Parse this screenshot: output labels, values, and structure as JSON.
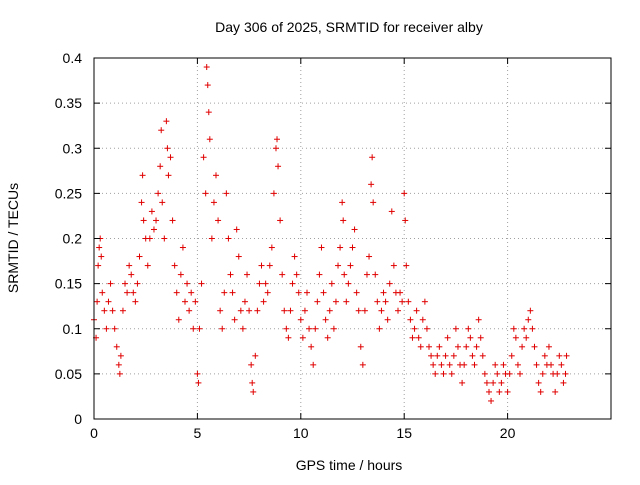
{
  "chart_data": {
    "type": "scatter",
    "title": "Day 306 of 2025, SRMTID for receiver alby",
    "xlabel": "GPS time / hours",
    "ylabel": "SRMTID / TECUs",
    "xlim": [
      0,
      25
    ],
    "ylim": [
      0,
      0.4
    ],
    "xticks": [
      0,
      5,
      10,
      15,
      20
    ],
    "xtick_labels": [
      "0",
      "5",
      "10",
      "15",
      "20"
    ],
    "yticks": [
      0,
      0.05,
      0.1,
      0.15,
      0.2,
      0.25,
      0.3,
      0.35,
      0.4
    ],
    "ytick_labels": [
      "0",
      "0.05",
      "0.1",
      "0.15",
      "0.2",
      "0.25",
      "0.3",
      "0.35",
      "0.4"
    ],
    "grid": true,
    "marker": "+",
    "color": "#e00000",
    "series": [
      {
        "name": "SRMTID",
        "points": [
          [
            0.0,
            0.11
          ],
          [
            0.1,
            0.09
          ],
          [
            0.15,
            0.13
          ],
          [
            0.2,
            0.17
          ],
          [
            0.25,
            0.19
          ],
          [
            0.3,
            0.2
          ],
          [
            0.35,
            0.18
          ],
          [
            0.4,
            0.14
          ],
          [
            0.5,
            0.12
          ],
          [
            0.6,
            0.1
          ],
          [
            0.7,
            0.13
          ],
          [
            0.8,
            0.15
          ],
          [
            0.9,
            0.12
          ],
          [
            1.0,
            0.1
          ],
          [
            1.1,
            0.08
          ],
          [
            1.2,
            0.06
          ],
          [
            1.25,
            0.05
          ],
          [
            1.3,
            0.07
          ],
          [
            1.4,
            0.12
          ],
          [
            1.5,
            0.15
          ],
          [
            1.6,
            0.14
          ],
          [
            1.7,
            0.17
          ],
          [
            1.8,
            0.16
          ],
          [
            1.9,
            0.14
          ],
          [
            2.0,
            0.13
          ],
          [
            2.1,
            0.15
          ],
          [
            2.2,
            0.18
          ],
          [
            2.3,
            0.24
          ],
          [
            2.35,
            0.27
          ],
          [
            2.4,
            0.22
          ],
          [
            2.5,
            0.2
          ],
          [
            2.6,
            0.17
          ],
          [
            2.7,
            0.2
          ],
          [
            2.8,
            0.23
          ],
          [
            2.9,
            0.21
          ],
          [
            3.0,
            0.22
          ],
          [
            3.1,
            0.25
          ],
          [
            3.2,
            0.28
          ],
          [
            3.25,
            0.32
          ],
          [
            3.3,
            0.24
          ],
          [
            3.4,
            0.2
          ],
          [
            3.5,
            0.33
          ],
          [
            3.55,
            0.3
          ],
          [
            3.6,
            0.27
          ],
          [
            3.7,
            0.29
          ],
          [
            3.8,
            0.22
          ],
          [
            3.9,
            0.17
          ],
          [
            4.0,
            0.14
          ],
          [
            4.1,
            0.11
          ],
          [
            4.2,
            0.16
          ],
          [
            4.3,
            0.19
          ],
          [
            4.4,
            0.13
          ],
          [
            4.5,
            0.15
          ],
          [
            4.6,
            0.12
          ],
          [
            4.7,
            0.14
          ],
          [
            4.8,
            0.1
          ],
          [
            4.9,
            0.13
          ],
          [
            5.0,
            0.05
          ],
          [
            5.05,
            0.04
          ],
          [
            5.1,
            0.1
          ],
          [
            5.2,
            0.15
          ],
          [
            5.3,
            0.29
          ],
          [
            5.4,
            0.25
          ],
          [
            5.45,
            0.39
          ],
          [
            5.5,
            0.37
          ],
          [
            5.55,
            0.34
          ],
          [
            5.6,
            0.31
          ],
          [
            5.7,
            0.2
          ],
          [
            5.8,
            0.24
          ],
          [
            5.9,
            0.27
          ],
          [
            6.0,
            0.22
          ],
          [
            6.1,
            0.12
          ],
          [
            6.2,
            0.1
          ],
          [
            6.3,
            0.14
          ],
          [
            6.4,
            0.25
          ],
          [
            6.5,
            0.2
          ],
          [
            6.6,
            0.16
          ],
          [
            6.7,
            0.14
          ],
          [
            6.8,
            0.11
          ],
          [
            6.9,
            0.21
          ],
          [
            7.0,
            0.18
          ],
          [
            7.1,
            0.12
          ],
          [
            7.2,
            0.1
          ],
          [
            7.3,
            0.13
          ],
          [
            7.4,
            0.16
          ],
          [
            7.5,
            0.12
          ],
          [
            7.6,
            0.06
          ],
          [
            7.65,
            0.04
          ],
          [
            7.7,
            0.03
          ],
          [
            7.8,
            0.07
          ],
          [
            7.9,
            0.12
          ],
          [
            8.0,
            0.15
          ],
          [
            8.1,
            0.17
          ],
          [
            8.2,
            0.13
          ],
          [
            8.3,
            0.15
          ],
          [
            8.4,
            0.14
          ],
          [
            8.5,
            0.17
          ],
          [
            8.6,
            0.19
          ],
          [
            8.7,
            0.25
          ],
          [
            8.8,
            0.3
          ],
          [
            8.85,
            0.31
          ],
          [
            8.9,
            0.28
          ],
          [
            9.0,
            0.22
          ],
          [
            9.1,
            0.16
          ],
          [
            9.2,
            0.12
          ],
          [
            9.3,
            0.1
          ],
          [
            9.4,
            0.09
          ],
          [
            9.5,
            0.12
          ],
          [
            9.6,
            0.15
          ],
          [
            9.7,
            0.18
          ],
          [
            9.8,
            0.16
          ],
          [
            9.9,
            0.14
          ],
          [
            10.0,
            0.11
          ],
          [
            10.1,
            0.09
          ],
          [
            10.2,
            0.12
          ],
          [
            10.3,
            0.14
          ],
          [
            10.4,
            0.1
          ],
          [
            10.5,
            0.08
          ],
          [
            10.6,
            0.06
          ],
          [
            10.7,
            0.1
          ],
          [
            10.8,
            0.13
          ],
          [
            10.9,
            0.16
          ],
          [
            11.0,
            0.19
          ],
          [
            11.1,
            0.14
          ],
          [
            11.2,
            0.11
          ],
          [
            11.3,
            0.09
          ],
          [
            11.4,
            0.12
          ],
          [
            11.5,
            0.15
          ],
          [
            11.6,
            0.1
          ],
          [
            11.7,
            0.13
          ],
          [
            11.8,
            0.17
          ],
          [
            11.9,
            0.19
          ],
          [
            12.0,
            0.24
          ],
          [
            12.05,
            0.22
          ],
          [
            12.1,
            0.16
          ],
          [
            12.2,
            0.13
          ],
          [
            12.3,
            0.15
          ],
          [
            12.4,
            0.17
          ],
          [
            12.5,
            0.19
          ],
          [
            12.6,
            0.21
          ],
          [
            12.7,
            0.14
          ],
          [
            12.8,
            0.12
          ],
          [
            12.9,
            0.08
          ],
          [
            13.0,
            0.06
          ],
          [
            13.1,
            0.12
          ],
          [
            13.2,
            0.16
          ],
          [
            13.3,
            0.18
          ],
          [
            13.4,
            0.26
          ],
          [
            13.45,
            0.29
          ],
          [
            13.5,
            0.24
          ],
          [
            13.6,
            0.16
          ],
          [
            13.7,
            0.13
          ],
          [
            13.8,
            0.1
          ],
          [
            13.9,
            0.12
          ],
          [
            14.0,
            0.14
          ],
          [
            14.1,
            0.13
          ],
          [
            14.2,
            0.11
          ],
          [
            14.3,
            0.15
          ],
          [
            14.4,
            0.23
          ],
          [
            14.5,
            0.17
          ],
          [
            14.6,
            0.14
          ],
          [
            14.7,
            0.12
          ],
          [
            14.8,
            0.14
          ],
          [
            14.9,
            0.13
          ],
          [
            15.0,
            0.25
          ],
          [
            15.05,
            0.22
          ],
          [
            15.1,
            0.17
          ],
          [
            15.2,
            0.13
          ],
          [
            15.3,
            0.11
          ],
          [
            15.4,
            0.09
          ],
          [
            15.5,
            0.1
          ],
          [
            15.6,
            0.12
          ],
          [
            15.7,
            0.09
          ],
          [
            15.8,
            0.08
          ],
          [
            15.9,
            0.11
          ],
          [
            16.0,
            0.13
          ],
          [
            16.1,
            0.1
          ],
          [
            16.2,
            0.08
          ],
          [
            16.3,
            0.07
          ],
          [
            16.4,
            0.06
          ],
          [
            16.5,
            0.05
          ],
          [
            16.6,
            0.07
          ],
          [
            16.7,
            0.08
          ],
          [
            16.8,
            0.06
          ],
          [
            16.9,
            0.05
          ],
          [
            17.0,
            0.07
          ],
          [
            17.1,
            0.09
          ],
          [
            17.2,
            0.06
          ],
          [
            17.3,
            0.05
          ],
          [
            17.4,
            0.07
          ],
          [
            17.5,
            0.1
          ],
          [
            17.6,
            0.08
          ],
          [
            17.7,
            0.06
          ],
          [
            17.8,
            0.04
          ],
          [
            17.9,
            0.06
          ],
          [
            18.0,
            0.08
          ],
          [
            18.1,
            0.1
          ],
          [
            18.2,
            0.09
          ],
          [
            18.3,
            0.07
          ],
          [
            18.4,
            0.06
          ],
          [
            18.5,
            0.08
          ],
          [
            18.6,
            0.11
          ],
          [
            18.7,
            0.09
          ],
          [
            18.8,
            0.07
          ],
          [
            18.9,
            0.05
          ],
          [
            19.0,
            0.04
          ],
          [
            19.1,
            0.03
          ],
          [
            19.2,
            0.02
          ],
          [
            19.3,
            0.04
          ],
          [
            19.4,
            0.06
          ],
          [
            19.5,
            0.05
          ],
          [
            19.6,
            0.03
          ],
          [
            19.7,
            0.04
          ],
          [
            19.8,
            0.06
          ],
          [
            19.9,
            0.05
          ],
          [
            20.0,
            0.03
          ],
          [
            20.1,
            0.05
          ],
          [
            20.2,
            0.07
          ],
          [
            20.3,
            0.1
          ],
          [
            20.4,
            0.09
          ],
          [
            20.5,
            0.06
          ],
          [
            20.6,
            0.05
          ],
          [
            20.7,
            0.08
          ],
          [
            20.8,
            0.1
          ],
          [
            20.9,
            0.09
          ],
          [
            21.0,
            0.11
          ],
          [
            21.1,
            0.12
          ],
          [
            21.2,
            0.1
          ],
          [
            21.3,
            0.08
          ],
          [
            21.4,
            0.06
          ],
          [
            21.5,
            0.04
          ],
          [
            21.6,
            0.03
          ],
          [
            21.7,
            0.05
          ],
          [
            21.8,
            0.07
          ],
          [
            21.9,
            0.06
          ],
          [
            22.0,
            0.08
          ],
          [
            22.1,
            0.06
          ],
          [
            22.2,
            0.05
          ],
          [
            22.3,
            0.03
          ],
          [
            22.4,
            0.05
          ],
          [
            22.5,
            0.07
          ],
          [
            22.6,
            0.06
          ],
          [
            22.7,
            0.04
          ],
          [
            22.8,
            0.05
          ],
          [
            22.85,
            0.07
          ]
        ]
      }
    ]
  }
}
